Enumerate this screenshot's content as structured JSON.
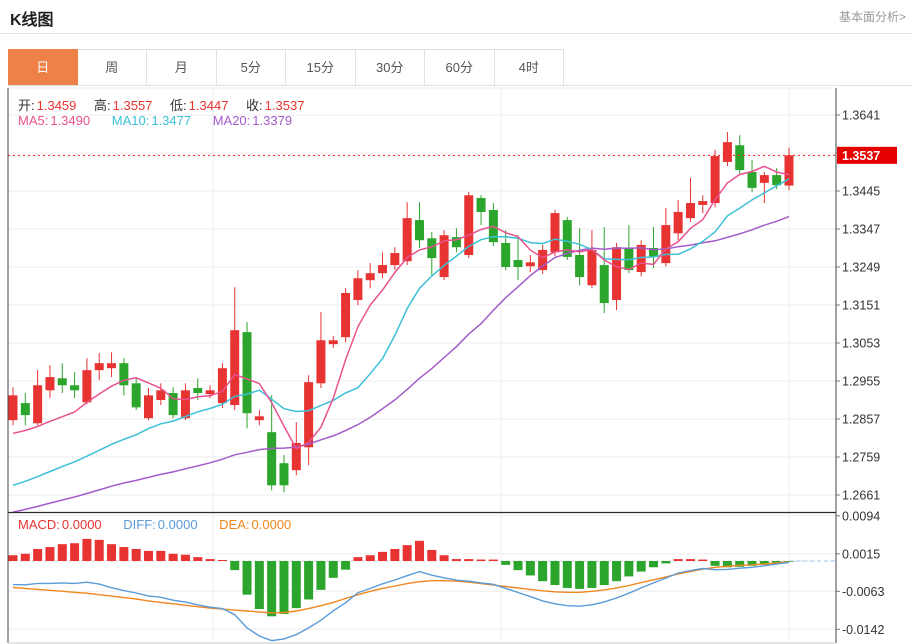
{
  "header": {
    "title": "K线图",
    "link": "基本面分析>"
  },
  "tabs": {
    "items": [
      "日",
      "周",
      "月",
      "5分",
      "15分",
      "30分",
      "60分",
      "4时"
    ],
    "active_index": 0
  },
  "info": {
    "open_label": "开:",
    "open": "1.3459",
    "high_label": "高:",
    "high": "1.3557",
    "low_label": "低:",
    "low": "1.3447",
    "close_label": "收:",
    "close": "1.3537"
  },
  "ma_info": {
    "ma5_label": "MA5:",
    "ma5": "1.3490",
    "ma10_label": "MA10:",
    "ma10": "1.3477",
    "ma20_label": "MA20:",
    "ma20": "1.3379"
  },
  "macd_info": {
    "macd_label": "MACD:",
    "macd": "0.0000",
    "diff_label": "DIFF:",
    "diff": "0.0000",
    "dea_label": "DEA:",
    "dea": "0.0000"
  },
  "colors": {
    "up": "#e83333",
    "down": "#2ca52c",
    "ma5": "#e8528f",
    "ma10": "#3bc0d8",
    "ma20": "#a45bc8",
    "diff_line": "#5b9bd8",
    "dea_line": "#f0871e",
    "price_line": "#ff1a1a",
    "price_tag_bg": "#e60000",
    "tab_active_bg": "#ee8147",
    "grid": "#ededed",
    "axis_text": "#333333",
    "label_text": "#333333"
  },
  "chart_data": {
    "type": "candlestick",
    "title": "K线图",
    "panels": [
      "price",
      "macd"
    ],
    "grid": true,
    "price_axis": {
      "tick_values": [
        1.3641,
        1.3543,
        1.3445,
        1.3347,
        1.3249,
        1.3151,
        1.3053,
        1.2955,
        1.2857,
        1.2759,
        1.2661
      ],
      "tick_labels": [
        "1.3641",
        "",
        "1.3445",
        "1.3347",
        "1.3249",
        "1.3151",
        "1.3053",
        "1.2955",
        "1.2857",
        "1.2759",
        "1.2661"
      ],
      "current_price": 1.3537,
      "current_price_label": "1.3537"
    },
    "candles": [
      [
        1.2854,
        1.2939,
        1.2841,
        1.2918
      ],
      [
        1.2898,
        1.2924,
        1.2841,
        1.2867
      ],
      [
        1.2846,
        1.2983,
        1.2841,
        1.2944
      ],
      [
        1.2931,
        1.2996,
        1.2911,
        1.2965
      ],
      [
        1.2962,
        1.3001,
        1.2924,
        1.2944
      ],
      [
        1.2944,
        1.2978,
        1.2911,
        1.2931
      ],
      [
        1.29,
        1.3014,
        1.2895,
        1.2983
      ],
      [
        1.2983,
        1.3027,
        1.2957,
        1.3001
      ],
      [
        1.2988,
        1.3029,
        1.2965,
        1.3001
      ],
      [
        1.3001,
        1.3014,
        1.2918,
        1.2944
      ],
      [
        1.2949,
        1.2962,
        1.288,
        1.2887
      ],
      [
        1.2859,
        1.2937,
        1.2854,
        1.2918
      ],
      [
        1.2906,
        1.2949,
        1.2893,
        1.2931
      ],
      [
        1.2924,
        1.2939,
        1.2859,
        1.2867
      ],
      [
        1.2859,
        1.2949,
        1.2854,
        1.2931
      ],
      [
        1.2937,
        1.2962,
        1.2906,
        1.2924
      ],
      [
        1.2921,
        1.2944,
        1.2911,
        1.2931
      ],
      [
        1.2898,
        1.3001,
        1.2885,
        1.2988
      ],
      [
        1.2893,
        1.3197,
        1.288,
        1.3086
      ],
      [
        1.3081,
        1.3107,
        1.2833,
        1.2872
      ],
      [
        1.2854,
        1.288,
        1.2841,
        1.2864
      ],
      [
        1.2823,
        1.2918,
        1.2673,
        1.2686
      ],
      [
        1.2743,
        1.2764,
        1.2668,
        1.2686
      ],
      [
        1.2725,
        1.2849,
        1.2712,
        1.2795
      ],
      [
        1.2784,
        1.297,
        1.2738,
        1.2952
      ],
      [
        1.2949,
        1.3133,
        1.2937,
        1.306
      ],
      [
        1.305,
        1.3071,
        1.304,
        1.306
      ],
      [
        1.3068,
        1.3194,
        1.3055,
        1.3182
      ],
      [
        1.3164,
        1.3241,
        1.3151,
        1.322
      ],
      [
        1.3215,
        1.3259,
        1.3194,
        1.3233
      ],
      [
        1.3233,
        1.3287,
        1.322,
        1.3254
      ],
      [
        1.3254,
        1.33,
        1.3241,
        1.3285
      ],
      [
        1.3264,
        1.3416,
        1.3254,
        1.3375
      ],
      [
        1.337,
        1.3416,
        1.3298,
        1.3318
      ],
      [
        1.3323,
        1.3339,
        1.3228,
        1.3272
      ],
      [
        1.3223,
        1.3344,
        1.3215,
        1.3331
      ],
      [
        1.3326,
        1.3349,
        1.3287,
        1.33
      ],
      [
        1.328,
        1.3442,
        1.3272,
        1.3434
      ],
      [
        1.3427,
        1.3434,
        1.3357,
        1.3391
      ],
      [
        1.3396,
        1.3414,
        1.3303,
        1.3313
      ],
      [
        1.3311,
        1.3344,
        1.3241,
        1.3249
      ],
      [
        1.3267,
        1.3331,
        1.3215,
        1.3249
      ],
      [
        1.3251,
        1.328,
        1.3236,
        1.3261
      ],
      [
        1.3241,
        1.3306,
        1.3231,
        1.3293
      ],
      [
        1.3287,
        1.3396,
        1.3277,
        1.3388
      ],
      [
        1.337,
        1.3378,
        1.3267,
        1.3275
      ],
      [
        1.328,
        1.3349,
        1.3202,
        1.3223
      ],
      [
        1.3202,
        1.3344,
        1.3194,
        1.3293
      ],
      [
        1.3254,
        1.3352,
        1.313,
        1.3156
      ],
      [
        1.3164,
        1.3311,
        1.3138,
        1.33
      ],
      [
        1.3298,
        1.3357,
        1.3233,
        1.3241
      ],
      [
        1.3236,
        1.3318,
        1.3225,
        1.3306
      ],
      [
        1.3298,
        1.3352,
        1.3246,
        1.3275
      ],
      [
        1.3259,
        1.3401,
        1.3251,
        1.3357
      ],
      [
        1.3336,
        1.3422,
        1.3318,
        1.3391
      ],
      [
        1.3375,
        1.3479,
        1.3365,
        1.3414
      ],
      [
        1.3409,
        1.3434,
        1.3388,
        1.3419
      ],
      [
        1.3414,
        1.3551,
        1.3403,
        1.3535
      ],
      [
        1.352,
        1.3597,
        1.3509,
        1.3571
      ],
      [
        1.3563,
        1.3589,
        1.3489,
        1.3499
      ],
      [
        1.3494,
        1.3525,
        1.3442,
        1.3453
      ],
      [
        1.3466,
        1.3494,
        1.3414,
        1.3486
      ],
      [
        1.3486,
        1.3504,
        1.345,
        1.346
      ],
      [
        1.3459,
        1.3557,
        1.3447,
        1.3537
      ]
    ],
    "ma_periods": [
      5,
      10,
      20
    ],
    "ma_left_anchors": [
      1.282,
      1.2686,
      1.2617
    ],
    "macd": {
      "tick_values": [
        0.0094,
        0.0015,
        -0.0063,
        -0.0142
      ],
      "tick_labels": [
        "0.0094",
        "0.0015",
        "-0.0063",
        "-0.0142"
      ],
      "hist": [
        0.0012,
        0.0015,
        0.0025,
        0.0029,
        0.0035,
        0.0037,
        0.0046,
        0.0044,
        0.0035,
        0.0029,
        0.0025,
        0.0021,
        0.0021,
        0.0015,
        0.0013,
        0.0008,
        0.0004,
        0.0002,
        -0.0019,
        -0.007,
        -0.01,
        -0.0115,
        -0.011,
        -0.0098,
        -0.008,
        -0.006,
        -0.0035,
        -0.0018,
        0.0008,
        0.0012,
        0.0019,
        0.0025,
        0.0033,
        0.0042,
        0.0023,
        0.0012,
        0.0004,
        0.0004,
        0.0003,
        0.0003,
        -0.0008,
        -0.0019,
        -0.003,
        -0.0042,
        -0.005,
        -0.0056,
        -0.0058,
        -0.0056,
        -0.005,
        -0.0042,
        -0.0032,
        -0.0022,
        -0.0013,
        -0.0005,
        0.0004,
        0.0004,
        0.0003,
        -0.001,
        -0.0013,
        -0.0012,
        -0.001,
        -0.0008,
        -0.0005,
        -0.0002
      ],
      "dea": [
        -0.0055,
        -0.0057,
        -0.0059,
        -0.0061,
        -0.0063,
        -0.0065,
        -0.0067,
        -0.007,
        -0.0073,
        -0.0076,
        -0.0079,
        -0.0083,
        -0.0086,
        -0.0089,
        -0.0092,
        -0.0095,
        -0.0098,
        -0.01,
        -0.0102,
        -0.0104,
        -0.0106,
        -0.0108,
        -0.0107,
        -0.0104,
        -0.0099,
        -0.0093,
        -0.0086,
        -0.0078,
        -0.007,
        -0.0063,
        -0.0057,
        -0.0052,
        -0.0047,
        -0.0043,
        -0.0041,
        -0.0041,
        -0.0042,
        -0.0044,
        -0.0047,
        -0.005,
        -0.0053,
        -0.0056,
        -0.0059,
        -0.0062,
        -0.0064,
        -0.0065,
        -0.0065,
        -0.0063,
        -0.006,
        -0.0056,
        -0.0051,
        -0.0045,
        -0.0039,
        -0.0033,
        -0.0027,
        -0.0022,
        -0.0017,
        -0.0013,
        -0.0011,
        -0.0009,
        -0.0008,
        -0.0006,
        -0.0004,
        -0.0002
      ]
    }
  }
}
